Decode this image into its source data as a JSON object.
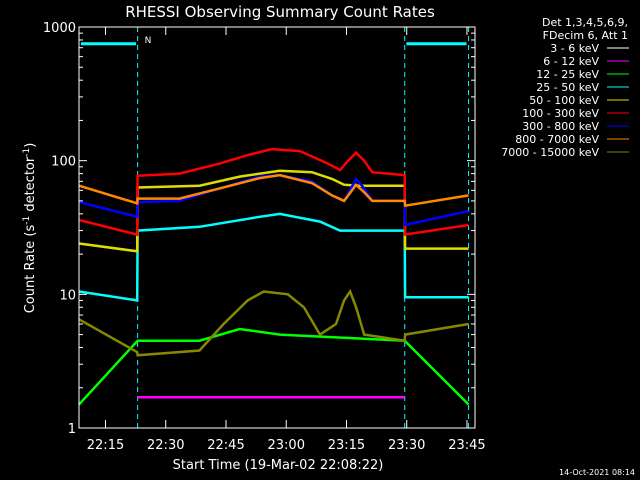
{
  "chart_data": {
    "type": "line",
    "title": "RHESSI Observing Summary Count Rates",
    "xlabel": "Start Time (19-Mar-02 22:08:22)",
    "ylabel_main": "Count Rate (s",
    "ylabel_sup1": "-1",
    "ylabel_mid": " detector",
    "ylabel_sup2": "-1",
    "ylabel_end": ")",
    "y_scale": "log",
    "ylim": [
      1,
      1000
    ],
    "xlim_minutes": [
      0,
      98.6
    ],
    "x_ticks": [
      {
        "label": "22:15",
        "minute": 6.6
      },
      {
        "label": "22:30",
        "minute": 21.6
      },
      {
        "label": "22:45",
        "minute": 36.6
      },
      {
        "label": "23:00",
        "minute": 51.6
      },
      {
        "label": "23:15",
        "minute": 66.6
      },
      {
        "label": "23:30",
        "minute": 81.6
      },
      {
        "label": "23:45",
        "minute": 96.6
      }
    ],
    "y_ticks": [
      {
        "label": "1",
        "value": 1
      },
      {
        "label": "10",
        "value": 10
      },
      {
        "label": "100",
        "value": 100
      },
      {
        "label": "1000",
        "value": 1000
      }
    ],
    "legend_header": [
      "Det 1,3,4,5,6,9,",
      "FDecim 6, Att 1"
    ],
    "legend_position": "right",
    "annotation_n": "N",
    "footer_date": "14-Oct-2021 08:14",
    "vertical_lines_minutes": [
      0,
      14.6,
      81.1,
      97
    ],
    "series": [
      {
        "name": "3 - 6 keV",
        "color": "#ffffff",
        "values": []
      },
      {
        "name": "6 - 12 keV",
        "color": "#ff00ff",
        "values": [
          [
            14.6,
            1.7
          ],
          [
            81.1,
            1.7
          ]
        ]
      },
      {
        "name": "12 - 25 keV",
        "color": "#00ff00",
        "values": [
          [
            0,
            1.5
          ],
          [
            14.6,
            4.5
          ],
          [
            30,
            4.5
          ],
          [
            40,
            5.5
          ],
          [
            50,
            5
          ],
          [
            81.1,
            4.5
          ],
          [
            97,
            1.5
          ]
        ]
      },
      {
        "name": "25 - 50 keV",
        "color": "#00ffff",
        "values": [
          [
            0,
            10.5
          ],
          [
            14.5,
            9
          ],
          [
            14.6,
            30
          ],
          [
            30,
            32
          ],
          [
            45,
            38
          ],
          [
            50,
            40
          ],
          [
            60,
            35
          ],
          [
            65,
            30
          ],
          [
            70,
            30
          ],
          [
            81.1,
            30
          ],
          [
            81.2,
            9.5
          ],
          [
            97,
            9.5
          ]
        ]
      },
      {
        "name": "50 - 100 keV",
        "color": "#dddd00",
        "values": [
          [
            0,
            24
          ],
          [
            14.5,
            21
          ],
          [
            14.6,
            63
          ],
          [
            30,
            65
          ],
          [
            40,
            76
          ],
          [
            50,
            84
          ],
          [
            58,
            82
          ],
          [
            63,
            73
          ],
          [
            66,
            66
          ],
          [
            70,
            65
          ],
          [
            81.1,
            65
          ],
          [
            81.2,
            22
          ],
          [
            97,
            22
          ]
        ]
      },
      {
        "name": "100 - 300 keV",
        "color": "#ff0000",
        "values": [
          [
            0,
            36
          ],
          [
            14.5,
            28
          ],
          [
            14.6,
            77
          ],
          [
            25,
            80
          ],
          [
            35,
            95
          ],
          [
            42,
            110
          ],
          [
            48,
            122
          ],
          [
            55,
            118
          ],
          [
            62,
            95
          ],
          [
            65,
            85
          ],
          [
            67,
            100
          ],
          [
            69,
            115
          ],
          [
            71,
            100
          ],
          [
            73,
            82
          ],
          [
            81.1,
            78
          ],
          [
            81.2,
            28
          ],
          [
            97,
            33
          ]
        ]
      },
      {
        "name": "300 - 800 keV",
        "color": "#0000ff",
        "values": [
          [
            0,
            49
          ],
          [
            14.5,
            38
          ],
          [
            14.6,
            49
          ],
          [
            25,
            50
          ],
          [
            35,
            62
          ],
          [
            45,
            76
          ],
          [
            50,
            78
          ],
          [
            58,
            70
          ],
          [
            63,
            55
          ],
          [
            66,
            50
          ],
          [
            69,
            73
          ],
          [
            71,
            62
          ],
          [
            73,
            50
          ],
          [
            81.1,
            50
          ],
          [
            81.2,
            33
          ],
          [
            97,
            42
          ]
        ]
      },
      {
        "name": "800 - 7000 keV",
        "color": "#ff8800",
        "values": [
          [
            0,
            65
          ],
          [
            14.5,
            48
          ],
          [
            14.6,
            52
          ],
          [
            25,
            52
          ],
          [
            35,
            62
          ],
          [
            45,
            74
          ],
          [
            50,
            78
          ],
          [
            58,
            68
          ],
          [
            63,
            55
          ],
          [
            66,
            50
          ],
          [
            69,
            66
          ],
          [
            71,
            58
          ],
          [
            73,
            50
          ],
          [
            81.1,
            50
          ],
          [
            81.2,
            46
          ],
          [
            97,
            55
          ]
        ]
      },
      {
        "name": "7000 - 15000 keV",
        "color": "#888800",
        "values": [
          [
            0,
            6.5
          ],
          [
            14.5,
            3.7
          ],
          [
            14.6,
            3.5
          ],
          [
            30,
            3.8
          ],
          [
            36,
            6
          ],
          [
            42,
            9
          ],
          [
            46,
            10.5
          ],
          [
            52,
            10
          ],
          [
            56,
            8
          ],
          [
            60,
            5
          ],
          [
            64,
            6
          ],
          [
            66,
            9
          ],
          [
            67.5,
            10.5
          ],
          [
            69,
            8
          ],
          [
            71,
            5
          ],
          [
            81.1,
            4.5
          ],
          [
            81.2,
            5
          ],
          [
            97,
            6
          ]
        ]
      }
    ],
    "saturation_bars": [
      {
        "color": "#00ffff",
        "x_minutes": [
          0.5,
          14.2
        ],
        "y": 750
      },
      {
        "color": "#00ffff",
        "x_minutes": [
          81.5,
          96.5
        ],
        "y": 750
      }
    ]
  }
}
